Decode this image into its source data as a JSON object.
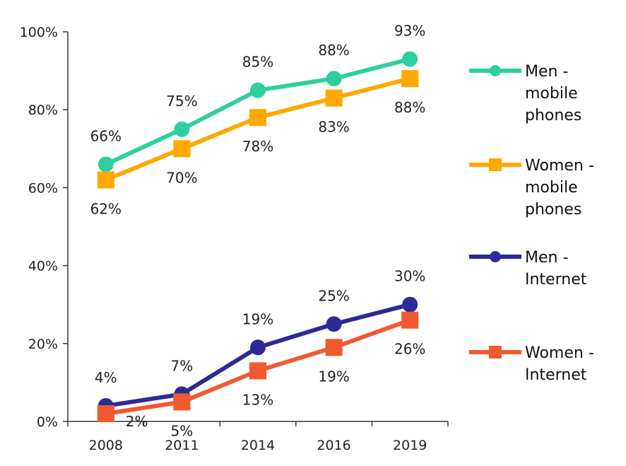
{
  "chart_data": {
    "type": "line",
    "x": [
      "2008",
      "2011",
      "2014",
      "2016",
      "2019"
    ],
    "ylim": [
      0,
      100
    ],
    "yticks": [
      "0%",
      "20%",
      "40%",
      "60%",
      "80%",
      "100%"
    ],
    "grid": false,
    "legend_position": "right",
    "series": [
      {
        "name": "Men - mobile phones",
        "name_lines": [
          "Men -",
          "mobile",
          "phones"
        ],
        "marker": "circle",
        "color": "#2ecf9f",
        "values": [
          66,
          75,
          85,
          88,
          93
        ],
        "labels": [
          "66%",
          "75%",
          "85%",
          "88%",
          "93%"
        ],
        "label_side": [
          "above",
          "above",
          "above",
          "above",
          "above"
        ]
      },
      {
        "name": "Women - mobile phones",
        "name_lines": [
          "Women -",
          "mobile",
          "phones"
        ],
        "marker": "square",
        "color": "#ffa800",
        "values": [
          62,
          70,
          78,
          83,
          88
        ],
        "labels": [
          "62%",
          "70%",
          "78%",
          "83%",
          "88%"
        ],
        "label_side": [
          "below",
          "below",
          "below",
          "below",
          "below"
        ]
      },
      {
        "name": "Men - Internet",
        "name_lines": [
          "Men -",
          "Internet"
        ],
        "marker": "circle",
        "color": "#2b2a96",
        "values": [
          4,
          7,
          19,
          25,
          30
        ],
        "labels": [
          "4%",
          "7%",
          "19%",
          "25%",
          "30%"
        ],
        "label_side": [
          "above",
          "above",
          "above",
          "above",
          "above"
        ]
      },
      {
        "name": "Women - Internet",
        "name_lines": [
          "Women -",
          "Internet"
        ],
        "marker": "square",
        "color": "#f05a30",
        "values": [
          2,
          5,
          13,
          19,
          26
        ],
        "labels": [
          "2%",
          "5%",
          "13%",
          "19%",
          "26%"
        ],
        "label_side": [
          "right",
          "below",
          "below",
          "below",
          "below"
        ]
      }
    ]
  }
}
